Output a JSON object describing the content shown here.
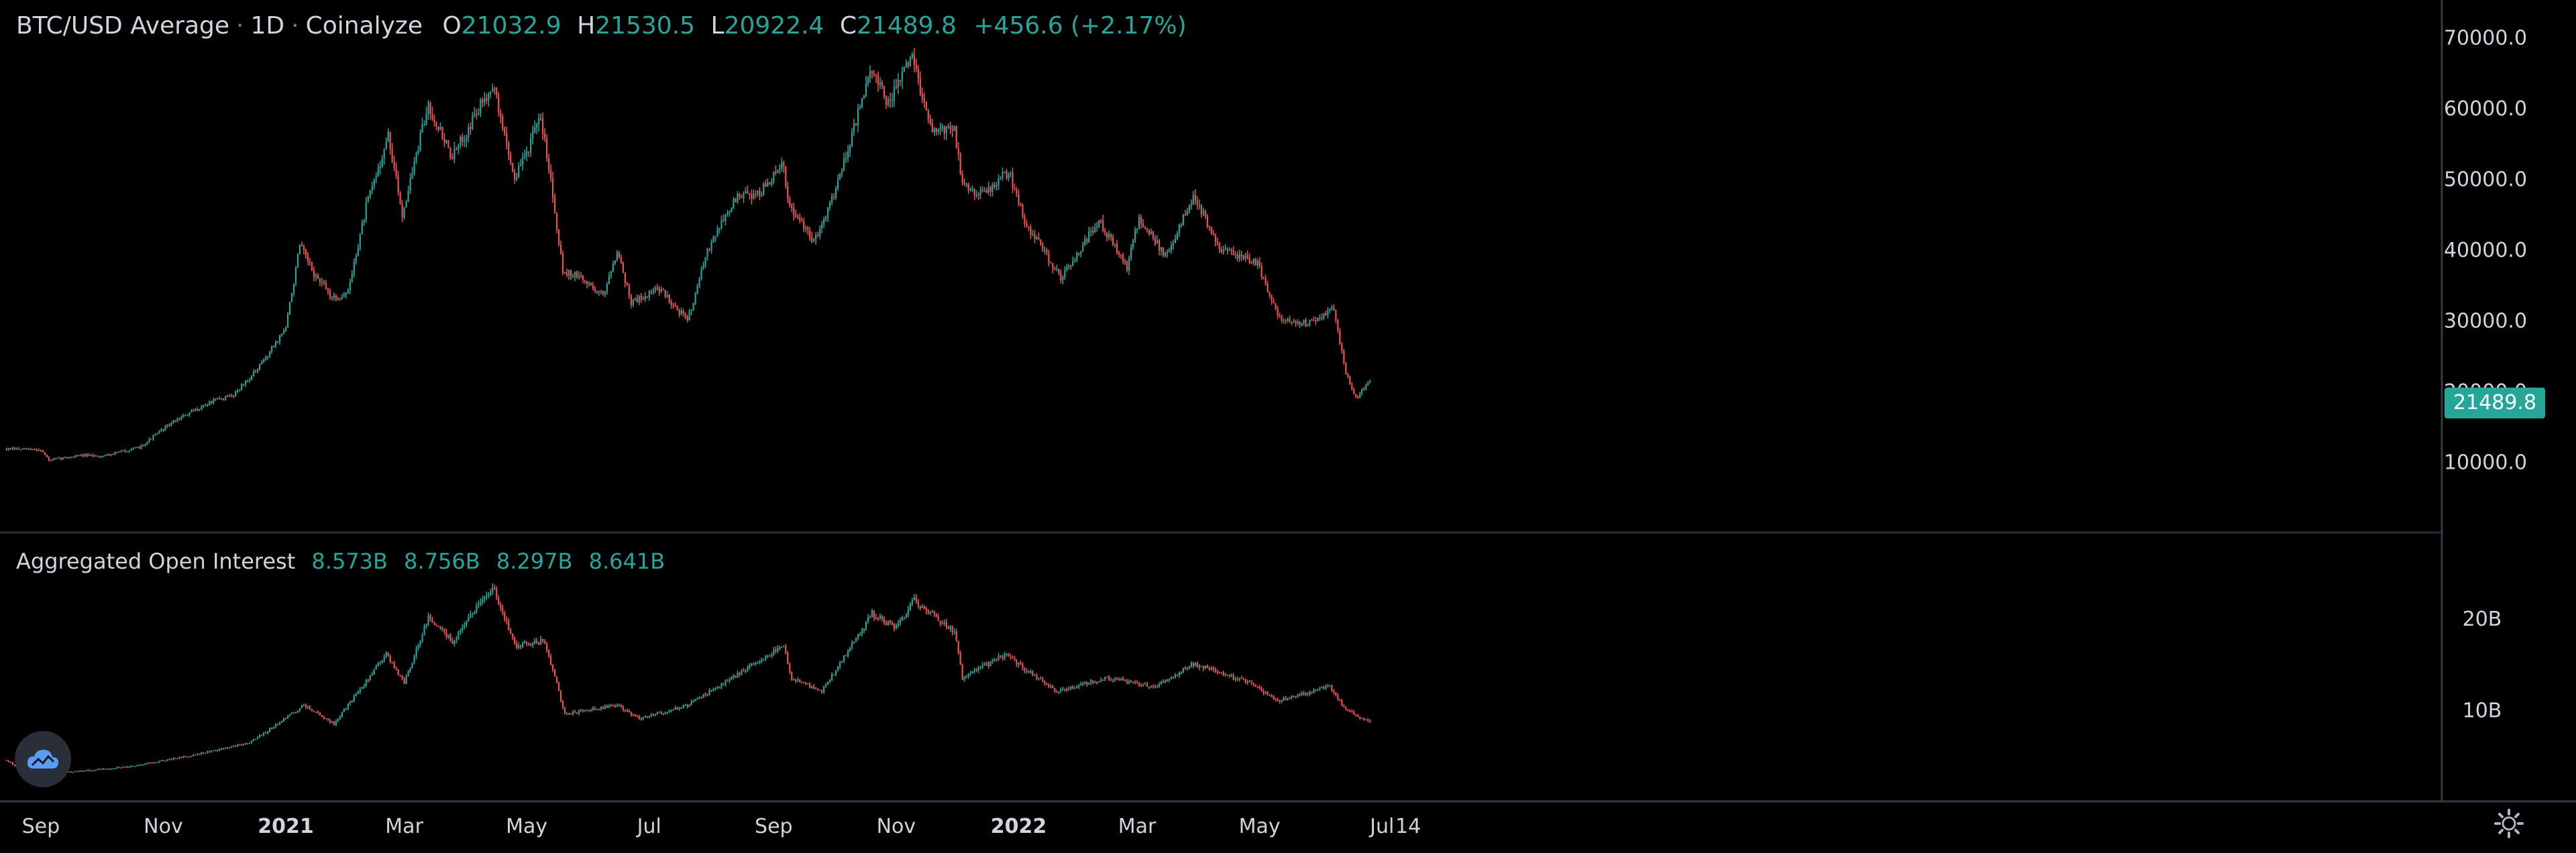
{
  "header": {
    "symbol": "BTC/USD Average",
    "interval": "1D",
    "source": "Coinalyze",
    "o_label": "O",
    "o_value": "21032.9",
    "h_label": "H",
    "h_value": "21530.5",
    "l_label": "L",
    "l_value": "20922.4",
    "c_label": "C",
    "c_value": "21489.8",
    "change": "+456.6 (+2.17%)"
  },
  "oi_header": {
    "title": "Aggregated Open Interest",
    "v1": "8.573B",
    "v2": "8.756B",
    "v3": "8.297B",
    "v4": "8.641B"
  },
  "price_tag": "21489.8",
  "colors": {
    "up": "#26a69a",
    "down": "#ef5350",
    "axis_text": "#d1d4dc",
    "background": "#000000"
  },
  "icons": {
    "logo": "coinalyze-cloud-logo-icon",
    "settings": "gear-icon"
  },
  "chart_data": [
    {
      "type": "candlestick",
      "title": "BTC/USD Average · 1D · Coinalyze",
      "ylim": [
        0,
        73000
      ],
      "y_ticks": [
        "10000.0",
        "20000.0",
        "30000.0",
        "40000.0",
        "50000.0",
        "60000.0",
        "70000.0"
      ],
      "x_ticks": [
        "Sep",
        "Nov",
        "2021",
        "Mar",
        "May",
        "Jul",
        "Sep",
        "Nov",
        "2022",
        "Mar",
        "May",
        "Jul",
        "14"
      ],
      "last_value": 21489.8,
      "series": [
        {
          "points": [
            [
              "2020-08-15",
              11800
            ],
            [
              "2020-09-01",
              11700
            ],
            [
              "2020-09-05",
              10200
            ],
            [
              "2020-09-20",
              10900
            ],
            [
              "2020-10-01",
              10800
            ],
            [
              "2020-10-20",
              12000
            ],
            [
              "2020-11-05",
              15500
            ],
            [
              "2020-11-25",
              18500
            ],
            [
              "2020-12-05",
              19300
            ],
            [
              "2020-12-18",
              23000
            ],
            [
              "2021-01-01",
              29000
            ],
            [
              "2021-01-08",
              40500
            ],
            [
              "2021-01-15",
              36500
            ],
            [
              "2021-01-25",
              33000
            ],
            [
              "2021-02-01",
              34000
            ],
            [
              "2021-02-10",
              46000
            ],
            [
              "2021-02-21",
              56000
            ],
            [
              "2021-02-28",
              45000
            ],
            [
              "2021-03-13",
              60500
            ],
            [
              "2021-03-25",
              53000
            ],
            [
              "2021-04-14",
              63500
            ],
            [
              "2021-04-25",
              50000
            ],
            [
              "2021-05-08",
              58500
            ],
            [
              "2021-05-12",
              52000
            ],
            [
              "2021-05-19",
              37000
            ],
            [
              "2021-05-28",
              36000
            ],
            [
              "2021-06-08",
              33500
            ],
            [
              "2021-06-15",
              40000
            ],
            [
              "2021-06-22",
              32500
            ],
            [
              "2021-07-06",
              34500
            ],
            [
              "2021-07-20",
              30000
            ],
            [
              "2021-08-01",
              41500
            ],
            [
              "2021-08-14",
              47500
            ],
            [
              "2021-08-25",
              48000
            ],
            [
              "2021-09-06",
              52000
            ],
            [
              "2021-09-08",
              46500
            ],
            [
              "2021-09-21",
              41000
            ],
            [
              "2021-10-01",
              48000
            ],
            [
              "2021-10-20",
              65500
            ],
            [
              "2021-10-28",
              60500
            ],
            [
              "2021-11-09",
              67500
            ],
            [
              "2021-11-18",
              57000
            ],
            [
              "2021-11-30",
              57000
            ],
            [
              "2021-12-04",
              49000
            ],
            [
              "2021-12-15",
              48000
            ],
            [
              "2021-12-27",
              51000
            ],
            [
              "2022-01-05",
              43500
            ],
            [
              "2022-01-22",
              36000
            ],
            [
              "2022-02-10",
              44000
            ],
            [
              "2022-02-24",
              37500
            ],
            [
              "2022-03-02",
              44500
            ],
            [
              "2022-03-15",
              39000
            ],
            [
              "2022-03-29",
              47500
            ],
            [
              "2022-04-12",
              40000
            ],
            [
              "2022-04-30",
              38000
            ],
            [
              "2022-05-10",
              30500
            ],
            [
              "2022-05-25",
              29500
            ],
            [
              "2022-06-07",
              31500
            ],
            [
              "2022-06-13",
              22500
            ],
            [
              "2022-06-18",
              19000
            ],
            [
              "2022-06-25",
              21489.8
            ]
          ]
        }
      ]
    },
    {
      "type": "candlestick",
      "title": "Aggregated Open Interest",
      "ylim": [
        0,
        26
      ],
      "y_ticks": [
        "10B",
        "20B"
      ],
      "series": [
        {
          "name": "Aggregated Open Interest",
          "points": [
            [
              "2020-08-15",
              4.5
            ],
            [
              "2020-08-25",
              3.0
            ],
            [
              "2020-09-15",
              3.2
            ],
            [
              "2020-10-15",
              3.8
            ],
            [
              "2020-11-15",
              5.0
            ],
            [
              "2020-12-15",
              6.5
            ],
            [
              "2021-01-10",
              10.5
            ],
            [
              "2021-01-25",
              8.5
            ],
            [
              "2021-02-20",
              16.0
            ],
            [
              "2021-03-01",
              13.0
            ],
            [
              "2021-03-13",
              20.0
            ],
            [
              "2021-03-25",
              17.5
            ],
            [
              "2021-04-14",
              23.5
            ],
            [
              "2021-04-25",
              17.0
            ],
            [
              "2021-05-10",
              17.5
            ],
            [
              "2021-05-20",
              9.5
            ],
            [
              "2021-06-15",
              10.5
            ],
            [
              "2021-06-26",
              9.0
            ],
            [
              "2021-07-20",
              10.5
            ],
            [
              "2021-08-15",
              14.0
            ],
            [
              "2021-09-06",
              17.0
            ],
            [
              "2021-09-10",
              13.5
            ],
            [
              "2021-09-25",
              12.0
            ],
            [
              "2021-10-20",
              20.5
            ],
            [
              "2021-11-01",
              19.0
            ],
            [
              "2021-11-10",
              22.0
            ],
            [
              "2021-11-30",
              18.5
            ],
            [
              "2021-12-04",
              13.5
            ],
            [
              "2021-12-25",
              16.0
            ],
            [
              "2022-01-20",
              12.0
            ],
            [
              "2022-02-15",
              13.5
            ],
            [
              "2022-03-10",
              12.5
            ],
            [
              "2022-03-29",
              15.0
            ],
            [
              "2022-04-25",
              13.0
            ],
            [
              "2022-05-10",
              11.0
            ],
            [
              "2022-06-05",
              12.5
            ],
            [
              "2022-06-13",
              10.0
            ],
            [
              "2022-06-25",
              8.641
            ]
          ]
        }
      ]
    }
  ]
}
